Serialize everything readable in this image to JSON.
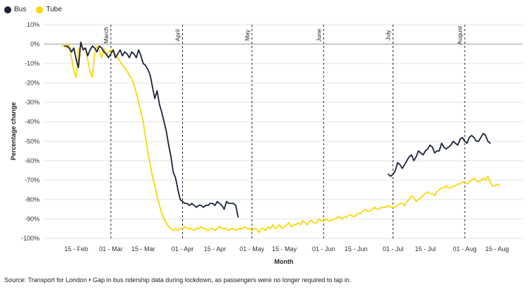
{
  "legend": [
    {
      "name": "Bus",
      "color": "#1b2238"
    },
    {
      "name": "Tube",
      "color": "#f5d90a"
    }
  ],
  "source_text": "Source: Transport for London • Gap in bus ridership data during lockdown, as passengers were no longer required to tap in.",
  "chart_data": {
    "type": "line",
    "xlabel": "Month",
    "ylabel": "Percentage change",
    "y_unit": "%",
    "ylim": [
      -100,
      10
    ],
    "yticks": [
      10,
      0,
      -10,
      -20,
      -30,
      -40,
      -50,
      -60,
      -70,
      -80,
      -90,
      -100
    ],
    "ytick_labels": [
      "10%",
      "0%",
      "-10%",
      "-20%",
      "-30%",
      "-40%",
      "-50%",
      "-60%",
      "-70%",
      "-80%",
      "-90%",
      "-100%"
    ],
    "xlim": [
      "2020-02-01",
      "2020-08-26"
    ],
    "xticks": [
      {
        "date": "2020-02-15",
        "label": "15 - Feb"
      },
      {
        "date": "2020-03-01",
        "label": "01 - Mar"
      },
      {
        "date": "2020-03-15",
        "label": "15 - Mar"
      },
      {
        "date": "2020-04-01",
        "label": "01 - Apr"
      },
      {
        "date": "2020-04-15",
        "label": "15 - Apr"
      },
      {
        "date": "2020-05-01",
        "label": "01 - May"
      },
      {
        "date": "2020-05-15",
        "label": "15 - May"
      },
      {
        "date": "2020-06-01",
        "label": "01 - Jun"
      },
      {
        "date": "2020-06-15",
        "label": "15 - Jun"
      },
      {
        "date": "2020-07-01",
        "label": "01 - Jul"
      },
      {
        "date": "2020-07-15",
        "label": "15 - Jul"
      },
      {
        "date": "2020-08-01",
        "label": "01 - Aug"
      },
      {
        "date": "2020-08-15",
        "label": "15 - Aug"
      }
    ],
    "annotations": [
      {
        "date": "2020-03-01",
        "label": "March"
      },
      {
        "date": "2020-04-01",
        "label": "April"
      },
      {
        "date": "2020-05-01",
        "label": "May"
      },
      {
        "date": "2020-06-01",
        "label": "June"
      },
      {
        "date": "2020-07-01",
        "label": "July"
      },
      {
        "date": "2020-08-01",
        "label": "August"
      }
    ],
    "grid": "horizontal",
    "legend_position": "top-left",
    "series": [
      {
        "name": "Bus",
        "color": "#1b2238",
        "segments": [
          {
            "start": "2020-02-10",
            "values": [
              -1,
              -1,
              -2,
              -4,
              -2,
              -8,
              -12,
              1,
              -3,
              -2,
              -6,
              -3,
              -1,
              -2,
              -4,
              -1,
              -2,
              -4,
              -5,
              -7,
              -5,
              -3,
              -7,
              -5,
              -3,
              -6,
              -4,
              -5,
              -7,
              -4,
              -5,
              -7,
              -3,
              -6,
              -10,
              -11,
              -13,
              -16,
              -22,
              -28,
              -24,
              -31,
              -35,
              -40,
              -45,
              -52,
              -58,
              -66,
              -69,
              -75,
              -80,
              -81,
              -82,
              -82,
              -83,
              -82,
              -83,
              -84,
              -83,
              -83,
              -84,
              -83,
              -83,
              -82,
              -82,
              -83,
              -81,
              -82,
              -83,
              -85,
              -81,
              -82,
              -82,
              -82,
              -83,
              -89
            ]
          },
          {
            "start": "2020-06-29",
            "values": [
              -67,
              -68,
              -67,
              -65,
              -61,
              -62,
              -64,
              -62,
              -60,
              -58,
              -57,
              -60,
              -58,
              -55,
              -56,
              -57,
              -55,
              -54,
              -52,
              -53,
              -56,
              -55,
              -55,
              -51,
              -53,
              -54,
              -53,
              -52,
              -50,
              -51,
              -52,
              -49,
              -48,
              -50,
              -51,
              -48,
              -47,
              -48,
              -50,
              -50,
              -48,
              -46,
              -47,
              -50,
              -51
            ]
          }
        ]
      },
      {
        "name": "Tube",
        "color": "#f5d90a",
        "segments": [
          {
            "start": "2020-02-09",
            "values": [
              -1,
              -1,
              -2,
              0,
              -7,
              -14,
              -17,
              -3,
              -1,
              -2,
              -2,
              -8,
              -14,
              -17,
              -5,
              -1,
              -3,
              -7,
              -2,
              -6,
              -4,
              -3,
              -3,
              -5,
              -7,
              -9,
              -11,
              -12,
              -14,
              -16,
              -18,
              -21,
              -25,
              -30,
              -35,
              -40,
              -48,
              -56,
              -62,
              -68,
              -73,
              -78,
              -83,
              -87,
              -90,
              -92,
              -94,
              -95,
              -96,
              -95,
              -96,
              -95,
              -95,
              -94,
              -95,
              -95,
              -95,
              -96,
              -95,
              -95,
              -94,
              -95,
              -95,
              -96,
              -95,
              -95,
              -96,
              -95,
              -94,
              -95,
              -95,
              -95,
              -96,
              -95,
              -95,
              -96,
              -95,
              -95,
              -95,
              -94,
              -95,
              -95,
              -96,
              -95,
              -95,
              -97,
              -95,
              -95,
              -96,
              -94,
              -95,
              -93,
              -95,
              -94,
              -93,
              -95,
              -94,
              -93,
              -92,
              -94,
              -93,
              -93,
              -92,
              -93,
              -91,
              -92,
              -93,
              -91,
              -91,
              -92,
              -92,
              -90,
              -91,
              -91,
              -90,
              -91,
              -91,
              -90,
              -90,
              -89,
              -89,
              -90,
              -89,
              -89,
              -88,
              -88,
              -89,
              -88,
              -87,
              -87,
              -86,
              -85,
              -86,
              -86,
              -85,
              -84,
              -85,
              -85,
              -84,
              -84,
              -84,
              -83,
              -84,
              -84,
              -84,
              -83,
              -82,
              -82,
              -83,
              -81,
              -80,
              -78,
              -79,
              -81,
              -80,
              -79,
              -78,
              -77,
              -76,
              -77,
              -77,
              -78,
              -76,
              -75,
              -74,
              -74,
              -73,
              -74,
              -74,
              -73,
              -73,
              -72,
              -72,
              -71,
              -71,
              -72,
              -71,
              -70,
              -69,
              -70,
              -71,
              -70,
              -69,
              -70,
              -68,
              -71,
              -73,
              -73,
              -72,
              -73
            ]
          }
        ]
      }
    ]
  }
}
